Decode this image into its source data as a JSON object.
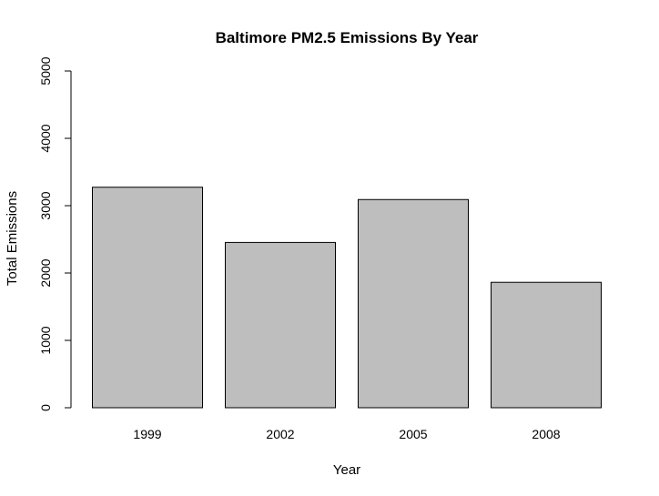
{
  "chart_data": {
    "type": "bar",
    "title": "Baltimore PM2.5 Emissions By Year",
    "xlabel": "Year",
    "ylabel": "Total Emissions",
    "categories": [
      "1999",
      "2002",
      "2005",
      "2008"
    ],
    "values": [
      3274,
      2454,
      3091,
      1862
    ],
    "ylim": [
      0,
      5000
    ],
    "yticks": [
      "0",
      "1000",
      "2000",
      "3000",
      "4000",
      "5000"
    ],
    "bar_color": "#bebebe",
    "grid": false,
    "legend": "none"
  }
}
